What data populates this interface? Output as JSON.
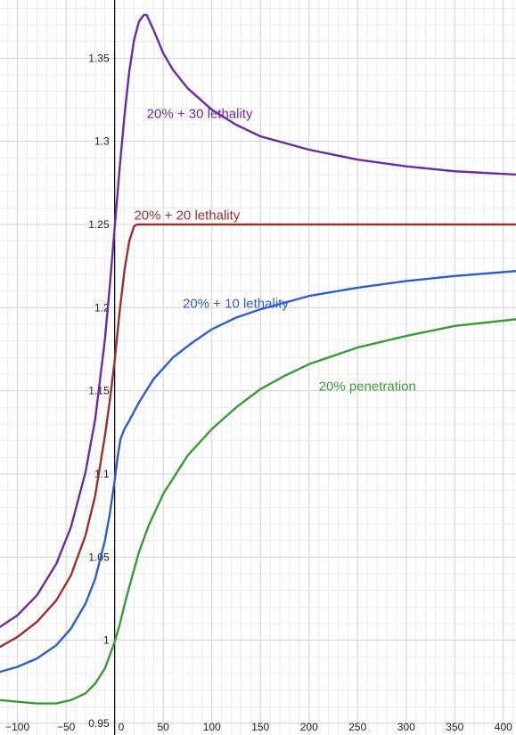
{
  "chart_data": {
    "type": "line",
    "title": "",
    "xlabel": "",
    "ylabel": "",
    "xlim": [
      -118,
      413
    ],
    "ylim": [
      0.943,
      1.385
    ],
    "grid": true,
    "minor_grid": true,
    "x_ticks": [
      -100,
      -50,
      0,
      50,
      100,
      150,
      200,
      250,
      300,
      350,
      400
    ],
    "x_tick_labels": [
      "−100",
      "−50",
      "0",
      "50",
      "100",
      "150",
      "200",
      "250",
      "300",
      "350",
      "400"
    ],
    "y_ticks": [
      0.95,
      1,
      1.05,
      1.1,
      1.15,
      1.2,
      1.25,
      1.3,
      1.35
    ],
    "y_tick_labels": [
      "0.95",
      "1",
      "1.05",
      "1.1",
      "1.15",
      "1.2",
      "1.25",
      "1.3",
      "1.35"
    ],
    "colors": {
      "major_grid": "#d4d4d4",
      "minor_grid": "#ececec",
      "axis": "#000000",
      "tick_text": "#222222"
    },
    "series": [
      {
        "name": "20% + 30 lethality",
        "color": "#6a2d9d",
        "label_position_data": [
          33,
          1.314
        ],
        "points": [
          [
            -118,
            1.008
          ],
          [
            -100,
            1.015
          ],
          [
            -80,
            1.027
          ],
          [
            -60,
            1.046
          ],
          [
            -45,
            1.068
          ],
          [
            -30,
            1.101
          ],
          [
            -20,
            1.133
          ],
          [
            -10,
            1.181
          ],
          [
            -5,
            1.213
          ],
          [
            0,
            1.248
          ],
          [
            5,
            1.283
          ],
          [
            10,
            1.315
          ],
          [
            15,
            1.342
          ],
          [
            20,
            1.361
          ],
          [
            25,
            1.372
          ],
          [
            30,
            1.376
          ],
          [
            33,
            1.376
          ],
          [
            40,
            1.367
          ],
          [
            50,
            1.353
          ],
          [
            60,
            1.343
          ],
          [
            75,
            1.332
          ],
          [
            100,
            1.319
          ],
          [
            125,
            1.31
          ],
          [
            150,
            1.303
          ],
          [
            200,
            1.295
          ],
          [
            250,
            1.289
          ],
          [
            300,
            1.285
          ],
          [
            350,
            1.282
          ],
          [
            413,
            1.28
          ]
        ]
      },
      {
        "name": "20% + 20 lethality",
        "color": "#9b2f2f",
        "label_position_data": [
          20,
          1.253
        ],
        "points": [
          [
            -118,
            0.996
          ],
          [
            -100,
            1.002
          ],
          [
            -80,
            1.011
          ],
          [
            -60,
            1.024
          ],
          [
            -45,
            1.039
          ],
          [
            -30,
            1.063
          ],
          [
            -20,
            1.087
          ],
          [
            -10,
            1.123
          ],
          [
            -5,
            1.144
          ],
          [
            0,
            1.168
          ],
          [
            5,
            1.197
          ],
          [
            10,
            1.222
          ],
          [
            15,
            1.24
          ],
          [
            20,
            1.249
          ],
          [
            23,
            1.25
          ],
          [
            50,
            1.25
          ],
          [
            100,
            1.25
          ],
          [
            200,
            1.25
          ],
          [
            300,
            1.25
          ],
          [
            413,
            1.25
          ]
        ]
      },
      {
        "name": "20% + 10 lethality",
        "color": "#2f5ec9",
        "label_position_data": [
          70,
          1.2
        ],
        "points": [
          [
            -118,
            0.981
          ],
          [
            -100,
            0.984
          ],
          [
            -80,
            0.989
          ],
          [
            -60,
            0.997
          ],
          [
            -45,
            1.007
          ],
          [
            -30,
            1.022
          ],
          [
            -20,
            1.037
          ],
          [
            -10,
            1.06
          ],
          [
            -5,
            1.076
          ],
          [
            0,
            1.096
          ],
          [
            3,
            1.11
          ],
          [
            6,
            1.121
          ],
          [
            10,
            1.127
          ],
          [
            15,
            1.132
          ],
          [
            25,
            1.143
          ],
          [
            40,
            1.157
          ],
          [
            60,
            1.17
          ],
          [
            80,
            1.179
          ],
          [
            100,
            1.187
          ],
          [
            125,
            1.194
          ],
          [
            150,
            1.199
          ],
          [
            200,
            1.207
          ],
          [
            250,
            1.212
          ],
          [
            300,
            1.216
          ],
          [
            350,
            1.219
          ],
          [
            413,
            1.222
          ]
        ]
      },
      {
        "name": "20% penetration",
        "color": "#3a9a3a",
        "label_position_data": [
          210,
          1.15
        ],
        "points": [
          [
            -118,
            0.964
          ],
          [
            -100,
            0.963
          ],
          [
            -80,
            0.962
          ],
          [
            -60,
            0.962
          ],
          [
            -45,
            0.964
          ],
          [
            -30,
            0.968
          ],
          [
            -20,
            0.974
          ],
          [
            -10,
            0.983
          ],
          [
            -5,
            0.991
          ],
          [
            0,
            0.999
          ],
          [
            5,
            1.009
          ],
          [
            10,
            1.021
          ],
          [
            15,
            1.032
          ],
          [
            25,
            1.053
          ],
          [
            35,
            1.069
          ],
          [
            50,
            1.088
          ],
          [
            75,
            1.111
          ],
          [
            100,
            1.127
          ],
          [
            125,
            1.14
          ],
          [
            150,
            1.151
          ],
          [
            175,
            1.159
          ],
          [
            200,
            1.166
          ],
          [
            250,
            1.176
          ],
          [
            300,
            1.183
          ],
          [
            350,
            1.189
          ],
          [
            413,
            1.193
          ]
        ]
      }
    ]
  }
}
